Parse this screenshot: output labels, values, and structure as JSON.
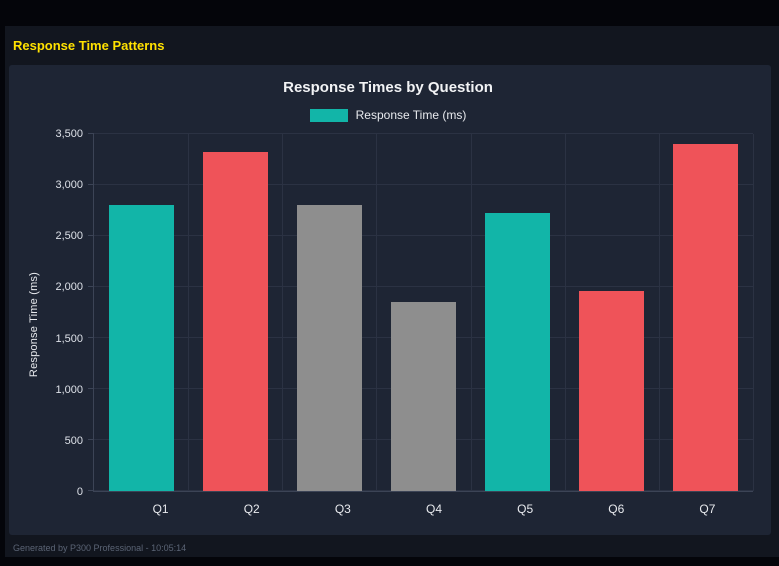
{
  "page": {
    "title": "Response Time Patterns",
    "footer": "Generated by P300 Professional - 10:05:14"
  },
  "chart_data": {
    "type": "bar",
    "title": "Response Times by Question",
    "legend_label": "Response Time (ms)",
    "legend_color": "#12b5a8",
    "legend_position": "top",
    "xlabel": "",
    "ylabel": "Response Time (ms)",
    "categories": [
      "Q1",
      "Q2",
      "Q3",
      "Q4",
      "Q5",
      "Q6",
      "Q7"
    ],
    "values": [
      2800,
      3320,
      2800,
      1850,
      2730,
      1960,
      3400
    ],
    "colors": [
      "#12b5a8",
      "#ef5359",
      "#8e8e8e",
      "#8e8e8e",
      "#12b5a8",
      "#ef5359",
      "#ef5359"
    ],
    "ylim": [
      0,
      3500
    ],
    "ytick_values": [
      0,
      500,
      1000,
      1500,
      2000,
      2500,
      3000,
      3500
    ],
    "ytick_labels": [
      "0",
      "500",
      "1,000",
      "1,500",
      "2,000",
      "2,500",
      "3,000",
      "3,500"
    ],
    "grid": true
  }
}
